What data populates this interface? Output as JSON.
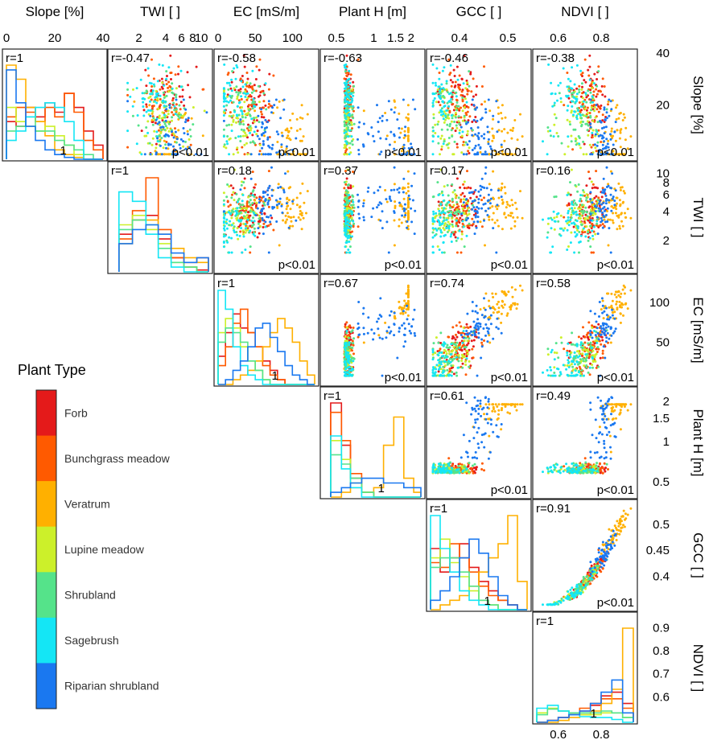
{
  "chart_data": {
    "type": "scatter-matrix",
    "title": "",
    "variables": [
      {
        "key": "slope",
        "label": "Slope [%]",
        "range": [
          0,
          40
        ],
        "top_ticks": [
          "0",
          "20",
          "40"
        ],
        "top_tick_values": [
          0,
          20,
          40
        ],
        "right_ticks": [
          "40",
          "20"
        ],
        "right_tick_values": [
          40,
          20
        ],
        "scale": "linear"
      },
      {
        "key": "twi",
        "label": "TWI [ ]",
        "range": [
          1,
          12
        ],
        "top_ticks": [
          "2",
          "4",
          "6",
          "8",
          "10"
        ],
        "top_tick_values": [
          2,
          4,
          6,
          8,
          10
        ],
        "right_ticks": [
          "10",
          "8",
          "6",
          "4",
          "2"
        ],
        "right_tick_values": [
          10,
          8,
          6,
          4,
          2
        ],
        "scale": "log"
      },
      {
        "key": "ec",
        "label": "EC [mS/m]",
        "range": [
          0,
          130
        ],
        "top_ticks": [
          "0",
          "50",
          "100"
        ],
        "top_tick_values": [
          0,
          50,
          100
        ],
        "right_ticks": [
          "100",
          "50"
        ],
        "right_tick_values": [
          100,
          50
        ],
        "scale": "linear"
      },
      {
        "key": "planth",
        "label": "Plant H [m]",
        "range": [
          0.4,
          2.4
        ],
        "top_ticks": [
          "0.5",
          "1",
          "1.5",
          "2"
        ],
        "top_tick_values": [
          0.5,
          1,
          1.5,
          2
        ],
        "right_ticks": [
          "2",
          "1.5",
          "1",
          "0.5"
        ],
        "right_tick_values": [
          2,
          1.5,
          1,
          0.5
        ],
        "scale": "log"
      },
      {
        "key": "gcc",
        "label": "GCC [ ]",
        "range": [
          0.34,
          0.54
        ],
        "top_ticks": [
          "0.4",
          "0.5"
        ],
        "top_tick_values": [
          0.4,
          0.5
        ],
        "right_ticks": [
          "0.5",
          "0.45",
          "0.4"
        ],
        "right_tick_values": [
          0.5,
          0.45,
          0.4
        ],
        "scale": "linear"
      },
      {
        "key": "ndvi",
        "label": "NDVI [ ]",
        "range": [
          0.5,
          0.95
        ],
        "top_ticks": [
          "0.6",
          "0.8"
        ],
        "top_tick_values": [
          0.6,
          0.8
        ],
        "right_ticks": [
          "0.9",
          "0.8",
          "0.7",
          "0.6"
        ],
        "right_tick_values": [
          0.9,
          0.8,
          0.7,
          0.6
        ],
        "bottom_ticks": [
          "0.6",
          "0.8"
        ],
        "bottom_tick_values": [
          0.6,
          0.8
        ],
        "scale": "linear"
      }
    ],
    "correlations": [
      {
        "row": 0,
        "col": 0,
        "r": "r=1",
        "p": "",
        "diag_mark": "1"
      },
      {
        "row": 0,
        "col": 1,
        "r": "r=-0.47",
        "p": "p<0.01"
      },
      {
        "row": 0,
        "col": 2,
        "r": "r=-0.58",
        "p": "p<0.01"
      },
      {
        "row": 0,
        "col": 3,
        "r": "r=-0.63",
        "p": "p<0.01"
      },
      {
        "row": 0,
        "col": 4,
        "r": "r=-0.46",
        "p": "p<0.01"
      },
      {
        "row": 0,
        "col": 5,
        "r": "r=-0.38",
        "p": "p<0.01"
      },
      {
        "row": 1,
        "col": 1,
        "r": "r=1",
        "p": "",
        "diag_mark": ""
      },
      {
        "row": 1,
        "col": 2,
        "r": "r=0.18",
        "p": "p<0.01"
      },
      {
        "row": 1,
        "col": 3,
        "r": "r=0.37",
        "p": "p<0.01"
      },
      {
        "row": 1,
        "col": 4,
        "r": "r=0.17",
        "p": "p<0.01"
      },
      {
        "row": 1,
        "col": 5,
        "r": "r=0.16",
        "p": "p<0.01"
      },
      {
        "row": 2,
        "col": 2,
        "r": "r=1",
        "p": "",
        "diag_mark": "1"
      },
      {
        "row": 2,
        "col": 3,
        "r": "r=0.67",
        "p": "p<0.01"
      },
      {
        "row": 2,
        "col": 4,
        "r": "r=0.74",
        "p": "p<0.01"
      },
      {
        "row": 2,
        "col": 5,
        "r": "r=0.58",
        "p": "p<0.01"
      },
      {
        "row": 3,
        "col": 3,
        "r": "r=1",
        "p": "",
        "diag_mark": "1"
      },
      {
        "row": 3,
        "col": 4,
        "r": "r=0.61",
        "p": "p<0.01"
      },
      {
        "row": 3,
        "col": 5,
        "r": "r=0.49",
        "p": "p<0.01"
      },
      {
        "row": 4,
        "col": 4,
        "r": "r=1",
        "p": "",
        "diag_mark": "1"
      },
      {
        "row": 4,
        "col": 5,
        "r": "r=0.91",
        "p": "p<0.01"
      },
      {
        "row": 5,
        "col": 5,
        "r": "r=1",
        "p": "",
        "diag_mark": "1"
      }
    ],
    "legend": {
      "title": "Plant Type",
      "position": "left",
      "classes": [
        {
          "name": "Forb",
          "color": "#e41a1a"
        },
        {
          "name": "Bunchgrass meadow",
          "color": "#ff5a00"
        },
        {
          "name": "Veratrum",
          "color": "#ffb000"
        },
        {
          "name": "Lupine meadow",
          "color": "#ccf02a"
        },
        {
          "name": "Shrubland",
          "color": "#55e38a"
        },
        {
          "name": "Sagebrush",
          "color": "#14e6f5"
        },
        {
          "name": "Riparian shrubland",
          "color": "#1a78f0"
        }
      ]
    },
    "histograms": [
      {
        "var": "slope",
        "bins": [
          0,
          4,
          8,
          12,
          16,
          20,
          24,
          28,
          32,
          36,
          40
        ],
        "series": [
          {
            "class": "Forb",
            "counts": [
              0.4,
              0.35,
              0.55,
              0.45,
              0.6,
              0.5,
              0.7,
              0.55,
              0.3,
              0.15
            ]
          },
          {
            "class": "Bunchgrass meadow",
            "counts": [
              0.45,
              0.55,
              0.5,
              0.4,
              0.55,
              0.45,
              0.7,
              0.5,
              0.2,
              0.1
            ]
          },
          {
            "class": "Veratrum",
            "counts": [
              1.0,
              0.85,
              0.55,
              0.4,
              0.25,
              0.1,
              0.05,
              0.02,
              0.0,
              0.0
            ]
          },
          {
            "class": "Lupine meadow",
            "counts": [
              0.55,
              0.4,
              0.35,
              0.3,
              0.35,
              0.25,
              0.15,
              0.05,
              0.0,
              0.0
            ]
          },
          {
            "class": "Shrubland",
            "counts": [
              0.3,
              0.35,
              0.45,
              0.3,
              0.3,
              0.2,
              0.15,
              0.1,
              0.05,
              0.0
            ]
          },
          {
            "class": "Sagebrush",
            "counts": [
              0.2,
              0.3,
              0.45,
              0.55,
              0.6,
              0.55,
              0.4,
              0.2,
              0.0,
              0.0
            ]
          },
          {
            "class": "Riparian shrubland",
            "counts": [
              0.95,
              0.6,
              0.35,
              0.2,
              0.1,
              0.05,
              0.02,
              0.0,
              0.0,
              0.0
            ]
          }
        ]
      },
      {
        "var": "twi",
        "bins": [
          1.2,
          1.7,
          2.4,
          3.3,
          4.6,
          6.4,
          8.9,
          12
        ],
        "series": [
          {
            "class": "Forb",
            "counts": [
              0.4,
              0.55,
              0.6,
              0.35,
              0.15,
              0.05,
              0.02
            ]
          },
          {
            "class": "Bunchgrass meadow",
            "counts": [
              0.35,
              0.65,
              1.0,
              0.45,
              0.15,
              0.1,
              0.15
            ]
          },
          {
            "class": "Veratrum",
            "counts": [
              0.3,
              0.55,
              0.55,
              0.4,
              0.25,
              0.15,
              0.1
            ]
          },
          {
            "class": "Lupine meadow",
            "counts": [
              0.5,
              0.6,
              0.45,
              0.3,
              0.1,
              0.05,
              0.0
            ]
          },
          {
            "class": "Shrubland",
            "counts": [
              0.45,
              0.55,
              0.5,
              0.25,
              0.1,
              0.05,
              0.0
            ]
          },
          {
            "class": "Sagebrush",
            "counts": [
              0.85,
              0.75,
              0.4,
              0.15,
              0.05,
              0.0,
              0.0
            ]
          },
          {
            "class": "Riparian shrubland",
            "counts": [
              0.3,
              0.45,
              0.5,
              0.4,
              0.2,
              0.1,
              0.15
            ]
          }
        ]
      },
      {
        "var": "ec",
        "bins": [
          0,
          10,
          20,
          30,
          40,
          50,
          60,
          70,
          80,
          90,
          100,
          110,
          120,
          130
        ],
        "series": [
          {
            "class": "Forb",
            "counts": [
              0.3,
              0.55,
              0.75,
              0.6,
              0.55,
              0.4,
              0.25,
              0.15,
              0.05,
              0.0,
              0.0,
              0.0,
              0.0
            ]
          },
          {
            "class": "Bunchgrass meadow",
            "counts": [
              0.2,
              0.4,
              0.65,
              0.8,
              0.55,
              0.4,
              0.2,
              0.1,
              0.05,
              0.0,
              0.0,
              0.0,
              0.0
            ]
          },
          {
            "class": "Veratrum",
            "counts": [
              0.0,
              0.0,
              0.05,
              0.1,
              0.15,
              0.25,
              0.4,
              0.55,
              0.7,
              0.6,
              0.45,
              0.25,
              0.1
            ]
          },
          {
            "class": "Lupine meadow",
            "counts": [
              0.55,
              0.7,
              0.6,
              0.4,
              0.25,
              0.15,
              0.05,
              0.0,
              0.0,
              0.0,
              0.0,
              0.0,
              0.0
            ]
          },
          {
            "class": "Shrubland",
            "counts": [
              0.45,
              0.6,
              0.55,
              0.45,
              0.25,
              0.15,
              0.05,
              0.0,
              0.0,
              0.0,
              0.0,
              0.0,
              0.0
            ]
          },
          {
            "class": "Sagebrush",
            "counts": [
              1.0,
              0.8,
              0.4,
              0.2,
              0.1,
              0.05,
              0.0,
              0.0,
              0.0,
              0.0,
              0.0,
              0.0,
              0.0
            ]
          },
          {
            "class": "Riparian shrubland",
            "counts": [
              0.0,
              0.05,
              0.15,
              0.25,
              0.4,
              0.6,
              0.65,
              0.5,
              0.35,
              0.2,
              0.1,
              0.05,
              0.0
            ]
          }
        ]
      },
      {
        "var": "planth",
        "bins": [
          0.45,
          0.55,
          0.65,
          0.8,
          1.0,
          1.2,
          1.45,
          1.75,
          2.1,
          2.4
        ],
        "series": [
          {
            "class": "Forb",
            "counts": [
              1.0,
              0.55,
              0.2,
              0.05,
              0.0,
              0.0,
              0.0,
              0.0,
              0.0
            ]
          },
          {
            "class": "Bunchgrass meadow",
            "counts": [
              0.9,
              0.6,
              0.25,
              0.05,
              0.0,
              0.0,
              0.0,
              0.0,
              0.0
            ]
          },
          {
            "class": "Veratrum",
            "counts": [
              0.0,
              0.05,
              0.1,
              0.05,
              0.1,
              0.55,
              0.85,
              0.2,
              0.05
            ]
          },
          {
            "class": "Lupine meadow",
            "counts": [
              0.6,
              0.4,
              0.15,
              0.05,
              0.0,
              0.0,
              0.0,
              0.0,
              0.0
            ]
          },
          {
            "class": "Shrubland",
            "counts": [
              0.45,
              0.35,
              0.2,
              0.05,
              0.0,
              0.0,
              0.0,
              0.0,
              0.0
            ]
          },
          {
            "class": "Sagebrush",
            "counts": [
              0.65,
              0.3,
              0.1,
              0.0,
              0.0,
              0.0,
              0.0,
              0.0,
              0.0
            ]
          },
          {
            "class": "Riparian shrubland",
            "counts": [
              0.05,
              0.1,
              0.15,
              0.2,
              0.2,
              0.15,
              0.15,
              0.1,
              0.1
            ]
          }
        ]
      },
      {
        "var": "gcc",
        "bins": [
          0.34,
          0.36,
          0.38,
          0.4,
          0.42,
          0.44,
          0.46,
          0.48,
          0.5,
          0.52,
          0.54
        ],
        "series": [
          {
            "class": "Forb",
            "counts": [
              0.65,
              0.4,
              0.55,
              0.7,
              0.45,
              0.3,
              0.2,
              0.1,
              0.05,
              0.0
            ]
          },
          {
            "class": "Bunchgrass meadow",
            "counts": [
              0.5,
              0.45,
              0.7,
              0.55,
              0.4,
              0.25,
              0.15,
              0.1,
              0.05,
              0.0
            ]
          },
          {
            "class": "Veratrum",
            "counts": [
              0.0,
              0.05,
              0.1,
              0.15,
              0.25,
              0.4,
              0.55,
              0.7,
              1.0,
              0.3
            ]
          },
          {
            "class": "Lupine meadow",
            "counts": [
              0.55,
              0.75,
              0.5,
              0.35,
              0.2,
              0.1,
              0.05,
              0.0,
              0.0,
              0.0
            ]
          },
          {
            "class": "Shrubland",
            "counts": [
              0.45,
              0.55,
              0.55,
              0.4,
              0.25,
              0.1,
              0.05,
              0.0,
              0.0,
              0.0
            ]
          },
          {
            "class": "Sagebrush",
            "counts": [
              1.0,
              0.65,
              0.4,
              0.2,
              0.1,
              0.05,
              0.0,
              0.0,
              0.0,
              0.0
            ]
          },
          {
            "class": "Riparian shrubland",
            "counts": [
              0.1,
              0.2,
              0.35,
              0.55,
              0.75,
              0.6,
              0.35,
              0.15,
              0.05,
              0.0
            ]
          }
        ]
      },
      {
        "var": "ndvi",
        "bins": [
          0.5,
          0.55,
          0.6,
          0.65,
          0.7,
          0.75,
          0.8,
          0.85,
          0.9,
          0.95
        ],
        "series": [
          {
            "class": "Forb",
            "counts": [
              0.0,
              0.02,
              0.05,
              0.08,
              0.12,
              0.18,
              0.28,
              0.32,
              0.2
            ]
          },
          {
            "class": "Bunchgrass meadow",
            "counts": [
              0.0,
              0.02,
              0.05,
              0.1,
              0.15,
              0.2,
              0.25,
              0.25,
              0.15
            ]
          },
          {
            "class": "Veratrum",
            "counts": [
              0.0,
              0.0,
              0.02,
              0.05,
              0.08,
              0.12,
              0.2,
              0.35,
              1.0
            ]
          },
          {
            "class": "Lupine meadow",
            "counts": [
              0.1,
              0.15,
              0.12,
              0.1,
              0.08,
              0.08,
              0.1,
              0.1,
              0.05
            ]
          },
          {
            "class": "Shrubland",
            "counts": [
              0.08,
              0.14,
              0.12,
              0.1,
              0.1,
              0.1,
              0.12,
              0.1,
              0.05
            ]
          },
          {
            "class": "Sagebrush",
            "counts": [
              0.15,
              0.18,
              0.12,
              0.08,
              0.06,
              0.05,
              0.05,
              0.03,
              0.0
            ]
          },
          {
            "class": "Riparian shrubland",
            "counts": [
              0.0,
              0.02,
              0.05,
              0.08,
              0.12,
              0.2,
              0.32,
              0.45,
              0.1
            ]
          }
        ]
      }
    ],
    "scatter_note": "Each off-diagonal panel shows ~400 sample points coloured by plant type; trends follow the printed r values."
  }
}
